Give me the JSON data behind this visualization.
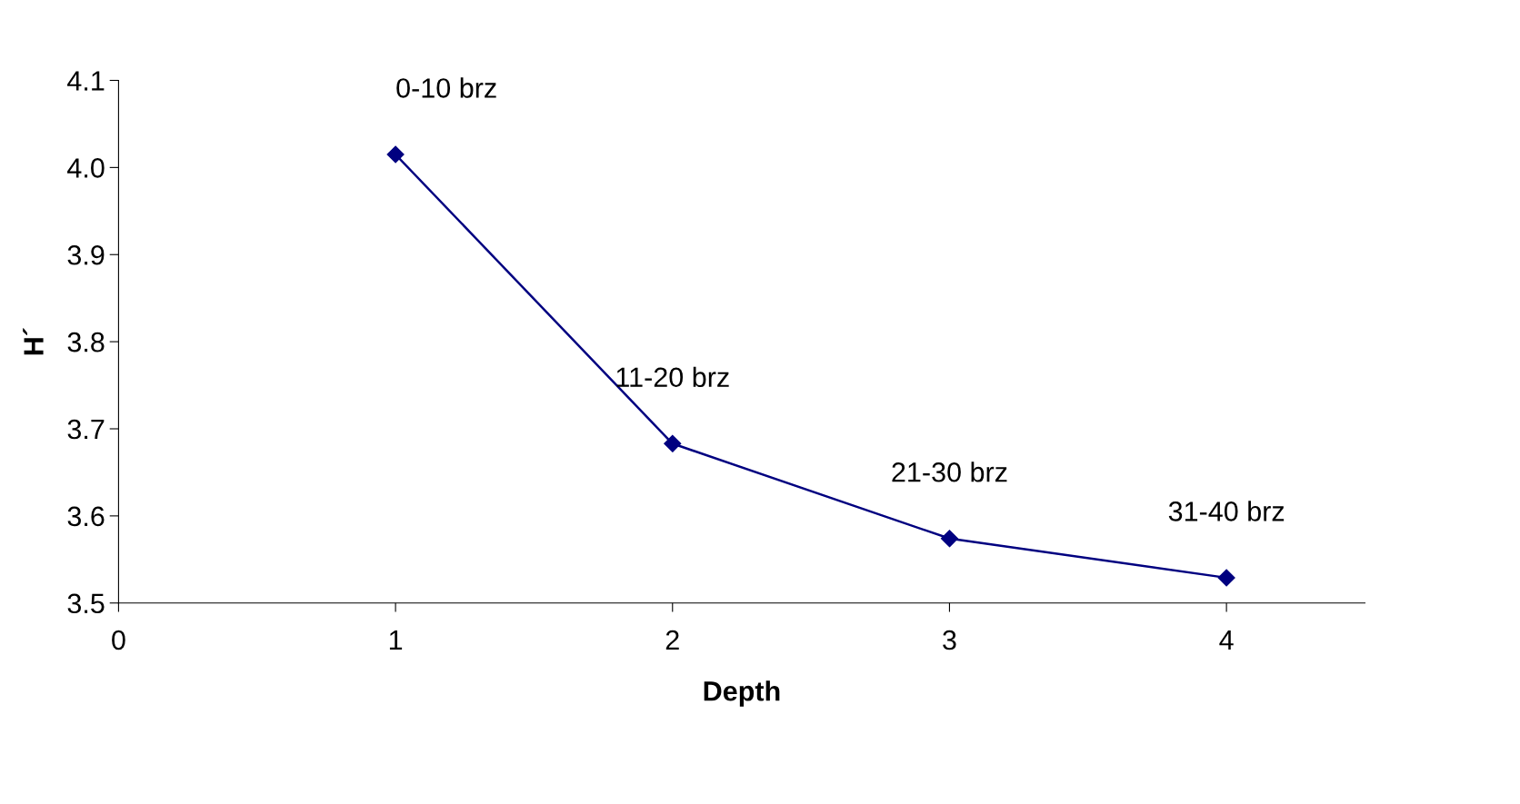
{
  "chart_data": {
    "type": "line",
    "xlabel": "Depth",
    "ylabel": "H´",
    "x": [
      1,
      2,
      3,
      4
    ],
    "series": [
      {
        "color": "#000080",
        "values": [
          4.015,
          3.683,
          3.574,
          3.529
        ]
      }
    ],
    "xlim": [
      0,
      4.5
    ],
    "xticks": [
      0,
      1,
      2,
      3,
      4
    ],
    "ylim": [
      3.5,
      4.1
    ],
    "yticks": [
      3.5,
      3.6,
      3.7,
      3.8,
      3.9,
      {
        "value": 4,
        "label": "4.0"
      },
      4.1
    ],
    "marker": "diamond",
    "line_style": "solid",
    "grid": false,
    "legend": false,
    "annotations": [
      {
        "text": "0-10 brz",
        "x": 1,
        "y": 4.015
      },
      {
        "text": "11-20 brz",
        "x": 2,
        "y": 3.683
      },
      {
        "text": "21-30 brz",
        "x": 3,
        "y": 3.574
      },
      {
        "text": "31-40 brz",
        "x": 4,
        "y": 3.529
      }
    ]
  }
}
